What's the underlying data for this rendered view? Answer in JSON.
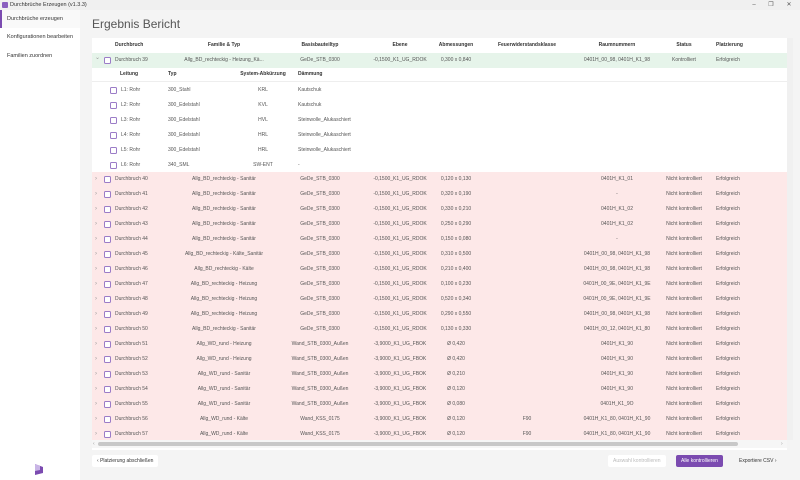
{
  "window": {
    "title": "Durchbrüche Erzeugen (v1.3.3)",
    "minimize": "–",
    "restore": "❐",
    "close": "✕"
  },
  "sidebar": {
    "items": [
      {
        "label": "Durchbrüche erzeugen",
        "active": true
      },
      {
        "label": "Konfigurationen bearbeiten"
      },
      {
        "label": "Familien zuordnen"
      }
    ]
  },
  "page": {
    "title": "Ergebnis Bericht"
  },
  "table": {
    "columns": [
      "Durchbruch",
      "Familie & Typ",
      "Basisbauteiltyp",
      "Ebene",
      "Abmessungen",
      "Feuerwiderstandsklasse",
      "Raumnummern",
      "Status",
      "Platzierung"
    ],
    "expanded_row": {
      "name": "Durchbruch 39",
      "familie": "Allg_BD_rechteckig - Heizung_Kä...",
      "basis": "GeDe_STB_0300",
      "ebene": "-0,1500_K1_UG_RDOK",
      "abm": "0,300 x 0,840",
      "feuer": "",
      "raum": "0401H_00_98, 0401H_K1_98",
      "status": "Kontrolliert",
      "platz": "Erfolgreich"
    },
    "sub_columns": [
      "Leitung",
      "Typ",
      "System-Abkürzung",
      "Dämmung"
    ],
    "sub_rows": [
      [
        "L1: Rohr",
        "300_Stahl",
        "KRL",
        "Kautschuk"
      ],
      [
        "L2: Rohr",
        "300_Edelstahl",
        "KVL",
        "Kautschuk"
      ],
      [
        "L3: Rohr",
        "300_Edelstahl",
        "HVL",
        "Steinwolle_Alukaschiert"
      ],
      [
        "L4: Rohr",
        "300_Edelstahl",
        "HRL",
        "Steinwolle_Alukaschiert"
      ],
      [
        "L5: Rohr",
        "300_Edelstahl",
        "HRL",
        "Steinwolle_Alukaschiert"
      ],
      [
        "L6: Rohr",
        "340_SML",
        "SW-ENT",
        "-"
      ]
    ],
    "rows": [
      [
        "Durchbruch 40",
        "Allg_BD_rechteckig - Sanitär",
        "GeDe_STB_0300",
        "-0,1500_K1_UG_RDOK",
        "0,120 x 0,130",
        "",
        "0401H_K1_01",
        "Nicht kontrolliert",
        "Erfolgreich"
      ],
      [
        "Durchbruch 41",
        "Allg_BD_rechteckig - Sanitär",
        "GeDe_STB_0300",
        "-0,1500_K1_UG_RDOK",
        "0,320 x 0,190",
        "",
        "-",
        "Nicht kontrolliert",
        "Erfolgreich"
      ],
      [
        "Durchbruch 42",
        "Allg_BD_rechteckig - Sanitär",
        "GeDe_STB_0300",
        "-0,1500_K1_UG_RDOK",
        "0,330 x 0,210",
        "",
        "0401H_K1_02",
        "Nicht kontrolliert",
        "Erfolgreich"
      ],
      [
        "Durchbruch 43",
        "Allg_BD_rechteckig - Sanitär",
        "GeDe_STB_0300",
        "-0,1500_K1_UG_RDOK",
        "0,250 x 0,290",
        "",
        "0401H_K1_02",
        "Nicht kontrolliert",
        "Erfolgreich"
      ],
      [
        "Durchbruch 44",
        "Allg_BD_rechteckig - Sanitär",
        "GeDe_STB_0300",
        "-0,1500_K1_UG_RDOK",
        "0,150 x 0,080",
        "",
        "-",
        "Nicht kontrolliert",
        "Erfolgreich"
      ],
      [
        "Durchbruch 45",
        "Allg_BD_rechteckig - Kälte_Sanitär",
        "GeDe_STB_0300",
        "-0,1500_K1_UG_RDOK",
        "0,310 x 0,500",
        "",
        "0401H_00_98, 0401H_K1_98",
        "Nicht kontrolliert",
        "Erfolgreich"
      ],
      [
        "Durchbruch 46",
        "Allg_BD_rechteckig - Kälte",
        "GeDe_STB_0300",
        "-0,1500_K1_UG_RDOK",
        "0,210 x 0,400",
        "",
        "0401H_00_98, 0401H_K1_98",
        "Nicht kontrolliert",
        "Erfolgreich"
      ],
      [
        "Durchbruch 47",
        "Allg_BD_rechteckig - Heizung",
        "GeDe_STB_0300",
        "-0,1500_K1_UG_RDOK",
        "0,100 x 0,230",
        "",
        "0401H_00_9E, 0401H_K1_9E",
        "Nicht kontrolliert",
        "Erfolgreich"
      ],
      [
        "Durchbruch 48",
        "Allg_BD_rechteckig - Heizung",
        "GeDe_STB_0300",
        "-0,1500_K1_UG_RDOK",
        "0,520 x 0,340",
        "",
        "0401H_00_9E, 0401H_K1_9E",
        "Nicht kontrolliert",
        "Erfolgreich"
      ],
      [
        "Durchbruch 49",
        "Allg_BD_rechteckig - Heizung",
        "GeDe_STB_0300",
        "-0,1500_K1_UG_RDOK",
        "0,290 x 0,550",
        "",
        "0401H_00_98, 0401H_K1_98",
        "Nicht kontrolliert",
        "Erfolgreich"
      ],
      [
        "Durchbruch 50",
        "Allg_BD_rechteckig - Sanitär",
        "GeDe_STB_0300",
        "-0,1500_K1_UG_RDOK",
        "0,130 x 0,330",
        "",
        "0401H_00_12, 0401H_K1_80",
        "Nicht kontrolliert",
        "Erfolgreich"
      ],
      [
        "Durchbruch 51",
        "Allg_WD_rund - Heizung",
        "Wand_STB_0300_Außen",
        "-3,9000_K1_UG_FBOK",
        "Ø 0,420",
        "",
        "0401H_K1_90",
        "Nicht kontrolliert",
        "Erfolgreich"
      ],
      [
        "Durchbruch 52",
        "Allg_WD_rund - Heizung",
        "Wand_STB_0300_Außen",
        "-3,9000_K1_UG_FBOK",
        "Ø 0,420",
        "",
        "0401H_K1_90",
        "Nicht kontrolliert",
        "Erfolgreich"
      ],
      [
        "Durchbruch 53",
        "Allg_WD_rund - Sanitär",
        "Wand_STB_0300_Außen",
        "-3,9000_K1_UG_FBOK",
        "Ø 0,210",
        "",
        "0401H_K1_90",
        "Nicht kontrolliert",
        "Erfolgreich"
      ],
      [
        "Durchbruch 54",
        "Allg_WD_rund - Sanitär",
        "Wand_STB_0300_Außen",
        "-3,9000_K1_UG_FBOK",
        "Ø 0,120",
        "",
        "0401H_K1_90",
        "Nicht kontrolliert",
        "Erfolgreich"
      ],
      [
        "Durchbruch 55",
        "Allg_WD_rund - Sanitär",
        "Wand_STB_0300_Außen",
        "-3,9000_K1_UG_FBOK",
        "Ø 0,080",
        "",
        "0401H_K1_9O",
        "Nicht kontrolliert",
        "Erfolgreich"
      ],
      [
        "Durchbruch 56",
        "Allg_WD_rund - Kälte",
        "Wand_KSS_0175",
        "-3,9000_K1_UG_FBOK",
        "Ø 0,120",
        "F90",
        "0401H_K1_80, 0401H_K1_90",
        "Nicht kontrolliert",
        "Erfolgreich"
      ],
      [
        "Durchbruch 57",
        "Allg_WD_rund - Kälte",
        "Wand_KSS_0175",
        "-3,9000_K1_UG_FBOK",
        "Ø 0,120",
        "F90",
        "0401H_K1_80, 0401H_K1_90",
        "Nicht kontrolliert",
        "Erfolgreich"
      ]
    ]
  },
  "footer": {
    "back": "Platzierung abschließen",
    "back_icon": "‹",
    "check_selected": "Auswahl kontrollieren",
    "check_all": "Alle kontrollieren",
    "export": "Exportiere CSV",
    "export_icon": "›"
  },
  "colors": {
    "accent": "#7b4bb0",
    "row_ok": "#e6f4ea",
    "row_unchecked": "#fde8e8"
  },
  "icons": {
    "expand": "chevron-right",
    "collapse": "chevron-down"
  }
}
